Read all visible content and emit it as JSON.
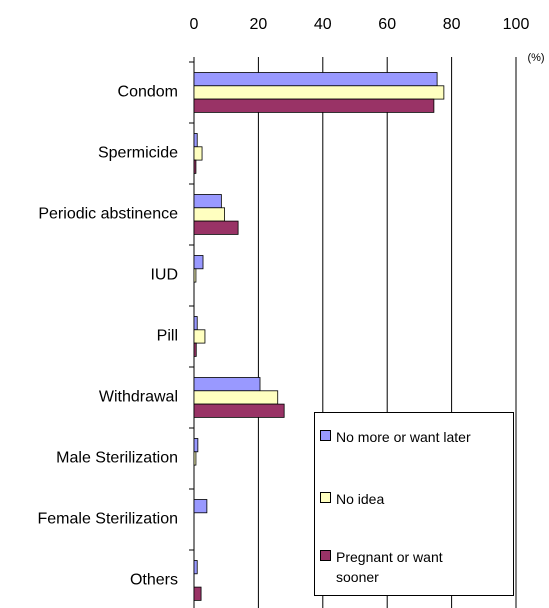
{
  "chart_data": {
    "type": "bar",
    "orientation": "horizontal",
    "x_unit": "(%)",
    "categories": [
      "Condom",
      "Spermicide",
      "Periodic abstinence",
      "IUD",
      "Pill",
      "Withdrawal",
      "Male Sterilization",
      "Female Sterilization",
      "Others"
    ],
    "series": [
      {
        "name": "No more or want later",
        "color": "#9999ff",
        "values": [
          75.5,
          1,
          8.5,
          2.8,
          1,
          20.5,
          1.2,
          4,
          1
        ]
      },
      {
        "name": "No idea",
        "color": "#ffffc0",
        "values": [
          77.6,
          2.5,
          9.5,
          0.6,
          3.4,
          26,
          0.6,
          0,
          0
        ]
      },
      {
        "name": "Pregnant or want sooner",
        "color": "#993366",
        "values": [
          74.5,
          0.6,
          13.7,
          0,
          0.7,
          28,
          0,
          0,
          2.2
        ]
      }
    ],
    "xlim": [
      0,
      100
    ],
    "xticks": [
      0,
      20,
      40,
      60,
      80,
      100
    ],
    "grid": true,
    "legend": "lower right"
  }
}
